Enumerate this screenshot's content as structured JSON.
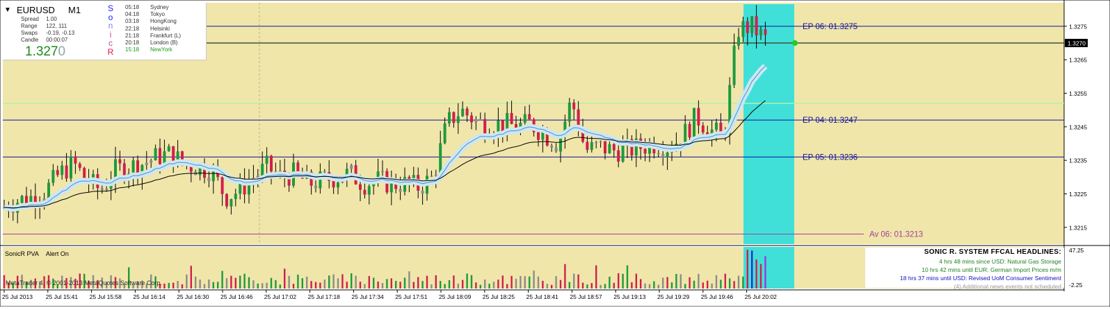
{
  "info_panel": {
    "symbol": "EURUSD",
    "timeframe": "M1",
    "stats": [
      {
        "label": "Spread",
        "value": "1.00"
      },
      {
        "label": "Range",
        "value": "122, 111"
      },
      {
        "label": "Swaps",
        "value": "-0.19, -0.13"
      },
      {
        "label": "Candle",
        "value": "00:00:07"
      }
    ],
    "price_main": "1.327",
    "price_last_digit": "0",
    "sonic_letters": [
      "S",
      "o",
      "n",
      "i",
      "c",
      "R"
    ],
    "sonic_colors": [
      "#1a1aff",
      "#1a1aff",
      "#7c7cff",
      "#c04a8a",
      "#c04a8a",
      "#e01040"
    ],
    "sessions": [
      {
        "time": "05:18",
        "city": "Sydney",
        "color": "#333333"
      },
      {
        "time": "04:18",
        "city": "Tokyo",
        "color": "#333333"
      },
      {
        "time": "03:18",
        "city": "HongKong",
        "color": "#333333"
      },
      {
        "time": "22:18",
        "city": "Helsinki",
        "color": "#333333"
      },
      {
        "time": "21:18",
        "city": "Frankfurt  (L)",
        "color": "#333333"
      },
      {
        "time": "20:18",
        "city": "London  (B)",
        "color": "#333333"
      },
      {
        "time": "15:18",
        "city": "NewYork",
        "color": "#1a9a1a"
      }
    ]
  },
  "chart_data": [
    {
      "type": "candlestick",
      "symbol": "EURUSD",
      "timeframe": "M1",
      "ylim": [
        1.321,
        1.3282
      ],
      "y_ticks": [
        "1.3275",
        "1.3265",
        "1.3255",
        "1.3245",
        "1.3235",
        "1.3225",
        "1.3215"
      ],
      "x_ticks": [
        "25 Jul 2013",
        "25 Jul 15:41",
        "25 Jul 15:58",
        "25 Jul 16:14",
        "25 Jul 16:30",
        "25 Jul 16:46",
        "25 Jul 17:02",
        "25 Jul 17:18",
        "25 Jul 17:34",
        "25 Jul 17:51",
        "25 Jul 18:09",
        "25 Jul 18:25",
        "25 Jul 18:41",
        "25 Jul 18:57",
        "25 Jul 19:13",
        "25 Jul 19:29",
        "25 Jul 19:46",
        "25 Jul 20:02"
      ],
      "current_price": "1.3270",
      "levels": [
        {
          "label": "EP 06:  01.3275",
          "value": 1.3275,
          "color": "#1010a0"
        },
        {
          "label": "EP 04:  01.3247",
          "value": 1.3247,
          "color": "#1010a0"
        },
        {
          "label": "EP 05:  01.3236",
          "value": 1.3236,
          "color": "#1010a0"
        },
        {
          "label": "Av 06:  01.3213",
          "value": 1.3213,
          "color": "#a040a0"
        }
      ],
      "close_series": [
        1.3221,
        1.3223,
        1.3224,
        1.3226,
        1.3231,
        1.3234,
        1.3229,
        1.3226,
        1.3232,
        1.3233,
        1.3234,
        1.3236,
        1.3237,
        1.3234,
        1.3233,
        1.3232,
        1.3224,
        1.3226,
        1.323,
        1.3233,
        1.323,
        1.3231,
        1.3228,
        1.3229,
        1.323,
        1.3231,
        1.3228,
        1.3229,
        1.3228,
        1.3228,
        1.3227,
        1.323,
        1.3246,
        1.325,
        1.3247,
        1.3245,
        1.3246,
        1.3245,
        1.3246,
        1.3243,
        1.324,
        1.3253,
        1.3238,
        1.3239,
        1.3238,
        1.3238,
        1.3239,
        1.324,
        1.3239,
        1.3242,
        1.3248,
        1.3244,
        1.3242,
        1.3274,
        1.3275,
        1.3271
      ]
    },
    {
      "type": "bar",
      "title": "SonicR PVA",
      "alert": "Alert On",
      "ylim": [
        -2.25,
        47.25
      ],
      "y_ticks": [
        "47.25",
        "-2.25"
      ]
    }
  ],
  "news": {
    "title": "SONIC R. SYSTEM  FFCAL HEADLINES:",
    "items": [
      {
        "text": "4 hrs 48 mins since USD: Natural Gas Storage",
        "color": "#208020"
      },
      {
        "text": "10 hrs 42 mins until EUR: German Import Prices m/m",
        "color": "#208020"
      },
      {
        "text": "18 hrs 37 mins until USD: Revised UoM Consumer Sentiment",
        "color": "#1010c0"
      },
      {
        "text": "(4)  Additional news events not scheduled",
        "color": "#9a9a9a"
      }
    ]
  },
  "watermark": "MetaTrader 4, © 2001-2013 MetaQuotes Software Corp.",
  "colors": {
    "background": "#f0e6aa",
    "bull_candle": "#1e9a3c",
    "bear_candle": "#d21e50",
    "neutral_candle": "#8c8c8c",
    "highlight_zone": "#40e0d8",
    "ema_band": "#cde7f1",
    "ema_line": "#4a8fd0",
    "slow_ma": "#000000"
  }
}
